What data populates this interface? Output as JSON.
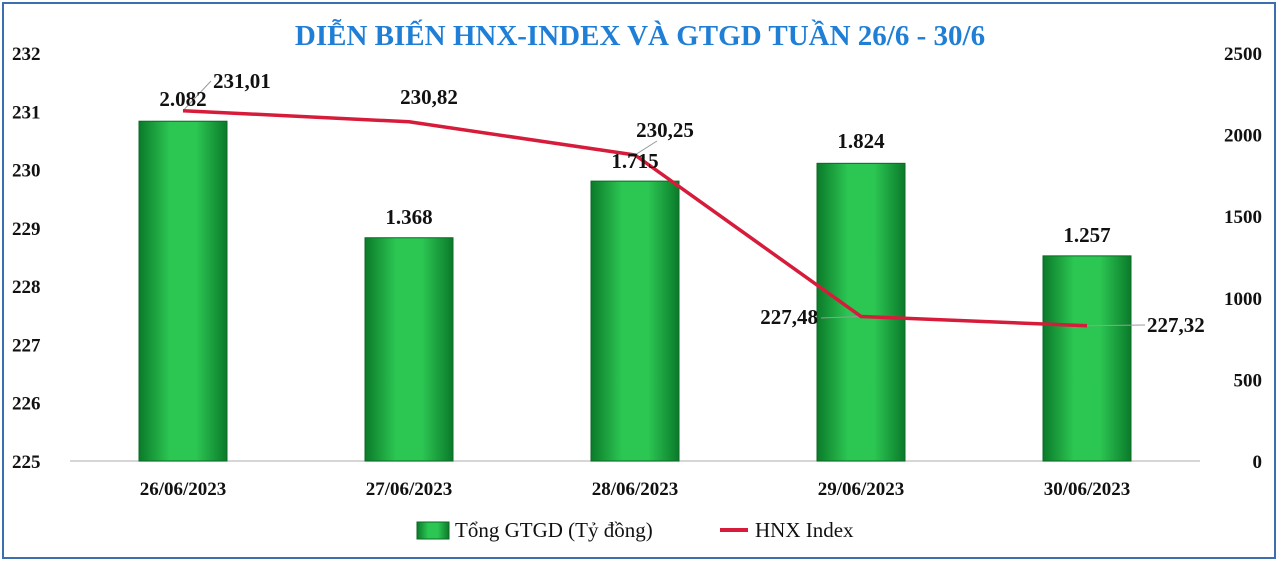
{
  "chart_data": {
    "type": "bar+line",
    "title": "DIỄN BIẾN HNX-INDEX VÀ GTGD TUẦN 26/6 - 30/6",
    "categories": [
      "26/06/2023",
      "27/06/2023",
      "28/06/2023",
      "29/06/2023",
      "30/06/2023"
    ],
    "series": [
      {
        "name": "Tổng GTGD (Tỷ đồng)",
        "type": "bar",
        "axis": "right",
        "values": [
          2082,
          1368,
          1715,
          1824,
          1257
        ],
        "labels": [
          "2.082",
          "1.368",
          "1.715",
          "1.824",
          "1.257"
        ],
        "color": "#1fae3f"
      },
      {
        "name": "HNX Index",
        "type": "line",
        "axis": "left",
        "values": [
          231.01,
          230.82,
          230.25,
          227.48,
          227.32
        ],
        "labels": [
          "231,01",
          "230,82",
          "230,25",
          "227,48",
          "227,32"
        ],
        "color": "#d61c3a"
      }
    ],
    "y_left": {
      "min": 225,
      "max": 232,
      "ticks": [
        "225",
        "226",
        "227",
        "228",
        "229",
        "230",
        "231",
        "232"
      ]
    },
    "y_right": {
      "min": 0,
      "max": 2500,
      "ticks": [
        "0",
        "500",
        "1000",
        "1500",
        "2000",
        "2500"
      ]
    },
    "grid": false,
    "legend": "bottom",
    "colors": {
      "title": "#1f7fd6",
      "border": "#3d6fae",
      "bar": "#1fae3f",
      "line": "#d61c3a"
    }
  }
}
